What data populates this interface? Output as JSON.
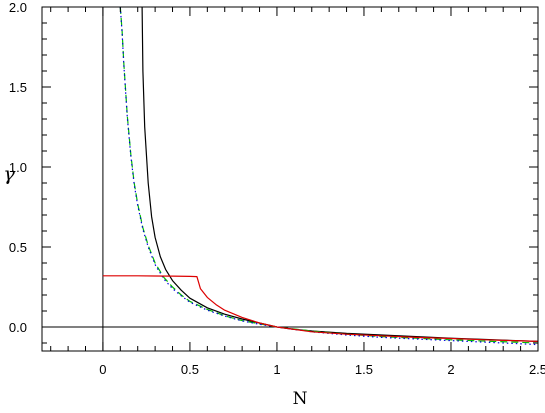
{
  "chart_data": {
    "type": "line",
    "title": "",
    "xlabel": "N",
    "ylabel": "γ",
    "xlim": [
      -0.35,
      2.5
    ],
    "ylim": [
      -0.15,
      2.0
    ],
    "grid": false,
    "legend": "none",
    "xticks": [
      {
        "value": 0,
        "label": "0"
      },
      {
        "value": 0.5,
        "label": "0.5"
      },
      {
        "value": 1,
        "label": "1"
      },
      {
        "value": 1.5,
        "label": "1.5"
      },
      {
        "value": 2,
        "label": "2"
      },
      {
        "value": 2.5,
        "label": "2.5"
      }
    ],
    "yticks": [
      {
        "value": 0,
        "label": "0.0"
      },
      {
        "value": 0.5,
        "label": "0.5"
      },
      {
        "value": 1.0,
        "label": "1.0"
      },
      {
        "value": 1.5,
        "label": "1.5"
      },
      {
        "value": 2.0,
        "label": "2.0"
      }
    ],
    "reference_lines": [
      {
        "orientation": "vertical",
        "at": 0,
        "color": "#000000"
      },
      {
        "orientation": "horizontal",
        "at": 0,
        "color": "#000000"
      }
    ],
    "series": [
      {
        "style": "solid",
        "color": "#000000",
        "x": [
          0.225,
          0.23,
          0.24,
          0.26,
          0.28,
          0.3,
          0.33,
          0.36,
          0.4,
          0.45,
          0.5,
          0.6,
          0.7,
          0.8,
          0.9,
          1.0,
          1.1,
          1.2,
          1.4,
          1.6,
          1.8,
          2.0,
          2.2,
          2.5
        ],
        "y": [
          2.0,
          1.6,
          1.25,
          0.9,
          0.69,
          0.56,
          0.44,
          0.36,
          0.29,
          0.23,
          0.18,
          0.12,
          0.08,
          0.05,
          0.025,
          0.0,
          -0.015,
          -0.025,
          -0.04,
          -0.05,
          -0.06,
          -0.07,
          -0.078,
          -0.09
        ]
      },
      {
        "style": "dashed",
        "color": "#00bb00",
        "x": [
          0.1,
          0.11,
          0.12,
          0.14,
          0.16,
          0.18,
          0.2,
          0.23,
          0.26,
          0.3,
          0.35,
          0.4,
          0.45,
          0.5,
          0.6,
          0.7,
          0.8,
          0.9,
          1.0,
          1.2,
          1.4,
          1.6,
          1.8,
          2.0,
          2.2,
          2.5
        ],
        "y": [
          2.0,
          1.85,
          1.65,
          1.32,
          1.08,
          0.9,
          0.77,
          0.62,
          0.51,
          0.4,
          0.31,
          0.25,
          0.2,
          0.16,
          0.11,
          0.07,
          0.04,
          0.02,
          0.0,
          -0.025,
          -0.045,
          -0.06,
          -0.07,
          -0.08,
          -0.088,
          -0.1
        ]
      },
      {
        "style": "dotted",
        "color": "#0000dd",
        "x": [
          0.1,
          0.11,
          0.12,
          0.14,
          0.16,
          0.18,
          0.2,
          0.23,
          0.26,
          0.3,
          0.35,
          0.4,
          0.45,
          0.5,
          0.6,
          0.7,
          0.8,
          0.9,
          1.0,
          1.2,
          1.4,
          1.6,
          1.8,
          2.0,
          2.2,
          2.5
        ],
        "y": [
          2.0,
          1.84,
          1.64,
          1.31,
          1.07,
          0.89,
          0.76,
          0.61,
          0.5,
          0.39,
          0.3,
          0.24,
          0.195,
          0.155,
          0.105,
          0.068,
          0.038,
          0.017,
          0.0,
          -0.03,
          -0.05,
          -0.065,
          -0.075,
          -0.085,
          -0.095,
          -0.11
        ]
      },
      {
        "style": "solid",
        "color": "#dd0000",
        "x": [
          0.0,
          0.1,
          0.2,
          0.3,
          0.4,
          0.5,
          0.54,
          0.56,
          0.6,
          0.65,
          0.7,
          0.8,
          0.9,
          1.0,
          1.2,
          1.4,
          1.6,
          1.8,
          2.0,
          2.2,
          2.5
        ],
        "y": [
          0.32,
          0.32,
          0.32,
          0.319,
          0.318,
          0.316,
          0.315,
          0.24,
          0.185,
          0.14,
          0.105,
          0.06,
          0.025,
          0.0,
          -0.03,
          -0.045,
          -0.055,
          -0.065,
          -0.072,
          -0.08,
          -0.09
        ]
      }
    ]
  }
}
